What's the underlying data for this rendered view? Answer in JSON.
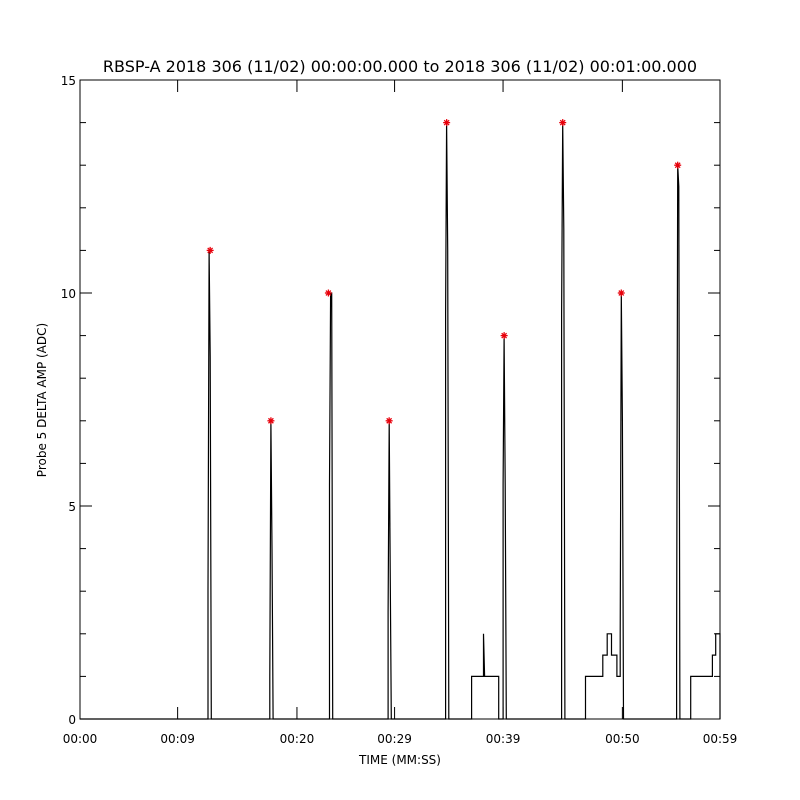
{
  "chart_data": {
    "type": "line",
    "title": "RBSP-A 2018 306 (11/02) 00:00:00.000 to 2018 306 (11/02) 00:01:00.000",
    "xlabel": "TIME (MM:SS)",
    "ylabel": "Probe 5 DELTA AMP (ADC)",
    "xlim": [
      0,
      59
    ],
    "ylim": [
      0,
      15
    ],
    "x_ticks": [
      0,
      9,
      20,
      29,
      39,
      50,
      59
    ],
    "x_tick_labels": [
      "00:00",
      "00:09",
      "00:20",
      "00:29",
      "00:39",
      "00:50",
      "00:59"
    ],
    "y_ticks": [
      0,
      5,
      10,
      15
    ],
    "y_tick_labels": [
      "0",
      "5",
      "10",
      "15"
    ],
    "grid": false,
    "series": [
      {
        "color": "#000000",
        "x": [
          0,
          10.0,
          11.8,
          11.8,
          11.9,
          12.0,
          12.1,
          12.2,
          17.5,
          17.5,
          17.6,
          17.7,
          17.8,
          23.0,
          23.0,
          23.1,
          23.2,
          23.3,
          28.4,
          28.4,
          28.5,
          28.6,
          28.7,
          33.7,
          33.7,
          33.8,
          33.9,
          34.0,
          36.1,
          36.1,
          37.2,
          37.2,
          37.3,
          37.4,
          38.6,
          38.6,
          39.0,
          39.0,
          39.1,
          39.2,
          39.3,
          44.4,
          44.4,
          44.5,
          44.6,
          44.7,
          46.6,
          46.6,
          48.2,
          48.2,
          48.6,
          48.6,
          49.0,
          49.0,
          49.5,
          49.5,
          49.8,
          49.8,
          49.9,
          50.0,
          50.1,
          55.0,
          55.0,
          55.1,
          55.2,
          55.3,
          56.3,
          56.3,
          58.3,
          58.3,
          58.6,
          58.6,
          59.0,
          59.0
        ],
        "y": [
          0,
          0,
          0,
          3,
          11,
          8.5,
          0,
          0,
          0,
          1,
          7,
          4,
          0,
          0,
          5.5,
          10,
          10,
          0,
          0,
          2.5,
          7,
          3.5,
          0,
          0,
          9.5,
          14,
          11,
          0,
          0,
          1,
          1,
          2,
          1,
          1,
          1,
          0,
          0,
          5.5,
          9,
          5.5,
          0,
          0,
          9.5,
          14,
          11.5,
          0,
          0,
          1,
          1,
          1.5,
          1.5,
          2,
          2,
          1.5,
          1.5,
          1,
          1,
          2,
          10,
          7,
          0,
          0,
          1.5,
          13,
          12.5,
          0,
          0,
          1,
          1,
          1.5,
          1.5,
          2,
          2,
          0
        ]
      }
    ],
    "markers": {
      "symbol": "*",
      "color": "#e8000b",
      "x": [
        12.0,
        17.6,
        22.9,
        28.5,
        33.8,
        39.1,
        44.5,
        49.9,
        55.1
      ],
      "y": [
        11,
        7,
        10,
        7,
        14,
        9,
        14,
        10,
        13
      ]
    }
  }
}
